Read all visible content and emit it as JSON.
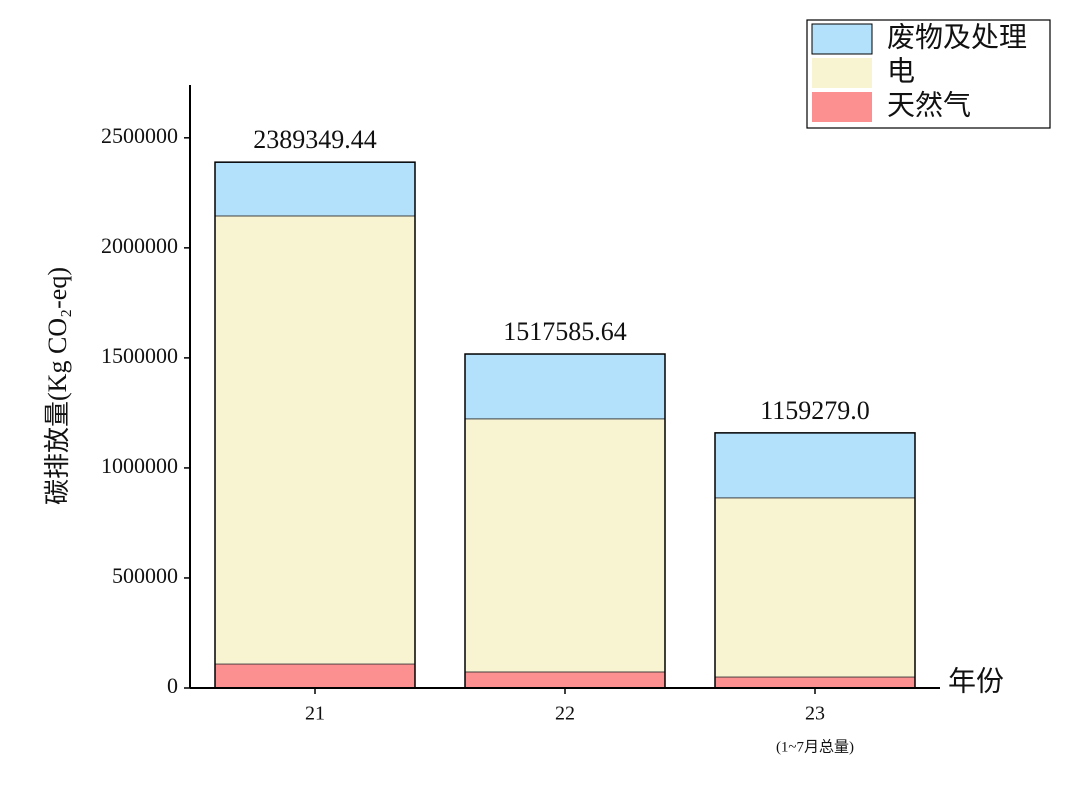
{
  "chart_data": {
    "type": "stacked-bar",
    "y_label": "碳排放量(Kg CO₂-eq)",
    "x_label": "年份",
    "categories": [
      "21",
      "22",
      "23"
    ],
    "annotation": "(1~7月总量)",
    "series": [
      {
        "name": "天然气",
        "color": "#fc9090",
        "values": [
          109000,
          73000,
          50000
        ]
      },
      {
        "name": "电",
        "color": "#f8f4d2",
        "values": [
          2036000,
          1150000,
          814000
        ]
      },
      {
        "name": "废物及处理",
        "color": "#b3e0fa",
        "values": [
          244349,
          294586,
          295279
        ]
      }
    ],
    "totals": {
      "values": [
        2389349.44,
        1517585.64,
        1159279.0
      ],
      "value_labels": [
        "2389349.44",
        "1517585.64",
        "1159279.0"
      ]
    },
    "ylim": [
      0,
      2740000
    ],
    "yticks": [
      0,
      500000,
      1000000,
      1500000,
      2000000,
      2500000
    ],
    "legend": "upper-right"
  }
}
